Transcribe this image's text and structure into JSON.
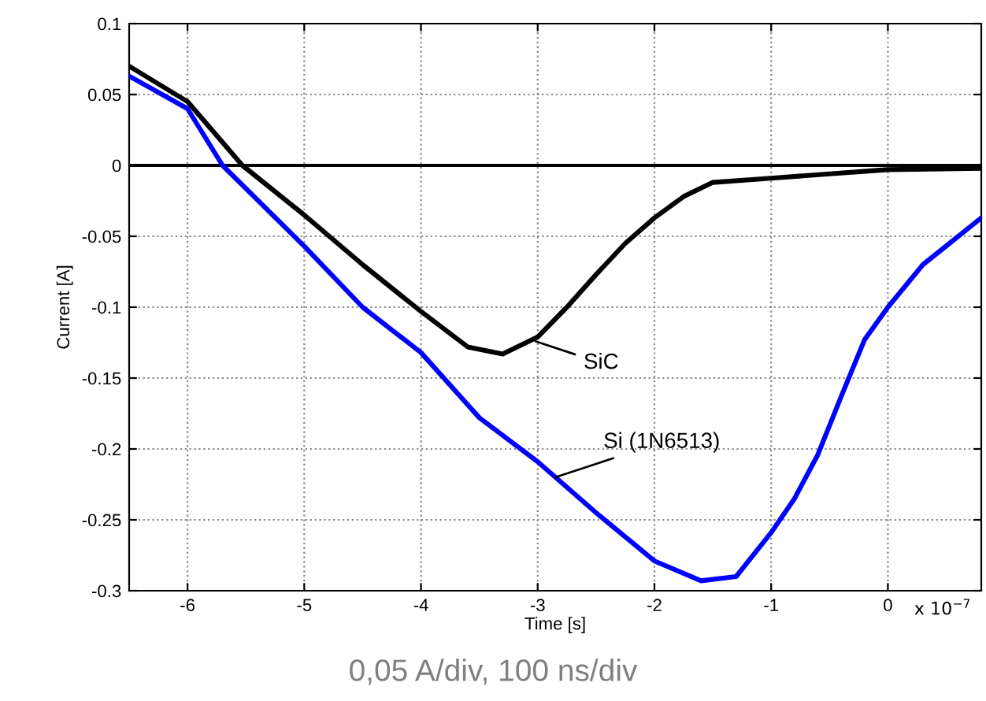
{
  "chart_data": {
    "type": "line",
    "xlabel": "Time [s]",
    "ylabel": "Current [A]",
    "series": [
      {
        "color": "#000000",
        "x": [
          -6.5,
          -6,
          -5.53,
          -5,
          -4.5,
          -4,
          -3.6,
          -3.3,
          -3,
          -2.75,
          -2.5,
          -2.25,
          -2,
          -1.75,
          -1.5,
          -1,
          -0.5,
          0,
          0.8
        ],
        "values": [
          0.07,
          0.045,
          0,
          -0.035,
          -0.07,
          -0.103,
          -0.128,
          -0.133,
          -0.121,
          -0.1,
          -0.077,
          -0.055,
          -0.037,
          -0.022,
          -0.012,
          -0.009,
          -0.006,
          -0.003,
          -0.002
        ]
      },
      {
        "color": "#0000ff",
        "x": [
          -6.5,
          -6,
          -5.7,
          -5,
          -4.5,
          -4,
          -3.5,
          -3,
          -2.5,
          -2,
          -1.6,
          -1.3,
          -1,
          -0.8,
          -0.6,
          -0.4,
          -0.2,
          0,
          0.3,
          0.8
        ],
        "values": [
          0.063,
          0.04,
          0,
          -0.057,
          -0.1,
          -0.132,
          -0.178,
          -0.209,
          -0.245,
          -0.279,
          -0.293,
          -0.29,
          -0.259,
          -0.235,
          -0.204,
          -0.163,
          -0.123,
          -0.1,
          -0.07,
          -0.037
        ]
      }
    ],
    "xlim": [
      -6.5,
      0.8
    ],
    "xticks": [
      -6,
      -5,
      -4,
      -3,
      -2,
      -1,
      0
    ],
    "ylim": [
      -0.3,
      0.1
    ],
    "yticks": [
      -0.3,
      -0.25,
      -0.2,
      -0.15,
      -0.1,
      -0.05,
      0,
      0.05,
      0.1
    ],
    "grid": true,
    "ref_lines": [
      {
        "axis": "y",
        "value": 0,
        "color": "#000000"
      }
    ],
    "annotations": [
      {
        "text": "SiC",
        "x": -3.02,
        "y": -0.124
      },
      {
        "text": "Si (1N6513)",
        "x": -2.85,
        "y": -0.22
      },
      "x 10$^{−7}$",
      "0,05 A/div, 100 ns/div"
    ]
  }
}
